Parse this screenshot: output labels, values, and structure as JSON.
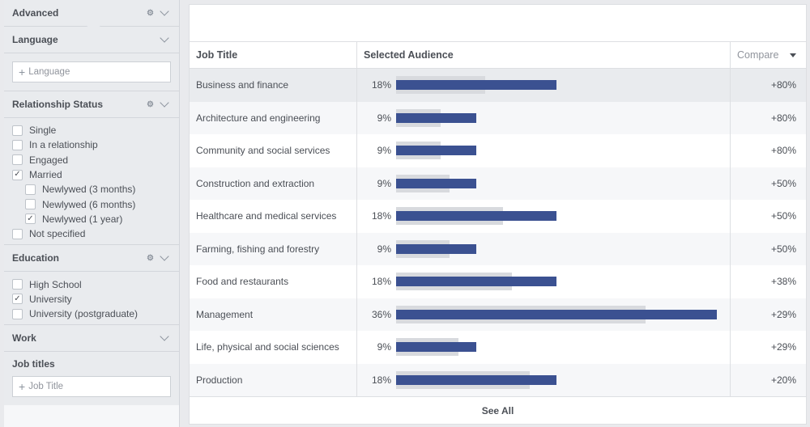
{
  "sidebar": {
    "advanced": {
      "title": "Advanced"
    },
    "language": {
      "title": "Language",
      "placeholder": "Language"
    },
    "relationship": {
      "title": "Relationship Status",
      "items": [
        {
          "label": "Single",
          "checked": false,
          "indent": false
        },
        {
          "label": "In a relationship",
          "checked": false,
          "indent": false
        },
        {
          "label": "Engaged",
          "checked": false,
          "indent": false
        },
        {
          "label": "Married",
          "checked": true,
          "indent": false
        },
        {
          "label": "Newlywed (3 months)",
          "checked": false,
          "indent": true
        },
        {
          "label": "Newlywed (6 months)",
          "checked": false,
          "indent": true
        },
        {
          "label": "Newlywed (1 year)",
          "checked": true,
          "indent": true
        },
        {
          "label": "Not specified",
          "checked": false,
          "indent": false
        }
      ]
    },
    "education": {
      "title": "Education",
      "items": [
        {
          "label": "High School",
          "checked": false
        },
        {
          "label": "University",
          "checked": true
        },
        {
          "label": "University (postgraduate)",
          "checked": false
        }
      ]
    },
    "work": {
      "title": "Work"
    },
    "job_titles": {
      "title": "Job titles",
      "placeholder": "Job Title"
    }
  },
  "table": {
    "headers": {
      "job_title": "Job Title",
      "audience": "Selected Audience",
      "compare": "Compare"
    },
    "rows": [
      {
        "title": "Business and finance",
        "pct": "18%",
        "value": 0.18,
        "benchmark": 0.1,
        "compare": "+80%"
      },
      {
        "title": "Architecture and engineering",
        "pct": "9%",
        "value": 0.09,
        "benchmark": 0.05,
        "compare": "+80%"
      },
      {
        "title": "Community and social services",
        "pct": "9%",
        "value": 0.09,
        "benchmark": 0.05,
        "compare": "+80%"
      },
      {
        "title": "Construction and extraction",
        "pct": "9%",
        "value": 0.09,
        "benchmark": 0.06,
        "compare": "+50%"
      },
      {
        "title": "Healthcare and medical services",
        "pct": "18%",
        "value": 0.18,
        "benchmark": 0.12,
        "compare": "+50%"
      },
      {
        "title": "Farming, fishing and forestry",
        "pct": "9%",
        "value": 0.09,
        "benchmark": 0.06,
        "compare": "+50%"
      },
      {
        "title": "Food and restaurants",
        "pct": "18%",
        "value": 0.18,
        "benchmark": 0.13,
        "compare": "+38%"
      },
      {
        "title": "Management",
        "pct": "36%",
        "value": 0.36,
        "benchmark": 0.28,
        "compare": "+29%"
      },
      {
        "title": "Life, physical and social sciences",
        "pct": "9%",
        "value": 0.09,
        "benchmark": 0.07,
        "compare": "+29%"
      },
      {
        "title": "Production",
        "pct": "18%",
        "value": 0.18,
        "benchmark": 0.15,
        "compare": "+20%"
      }
    ],
    "see_all": "See All"
  },
  "colors": {
    "bar": "#3b5191",
    "benchmark": "#d8dade"
  },
  "icons": {
    "settings": "gear-icon",
    "collapse": "chevron-down-icon",
    "add": "plus-icon",
    "sort": "caret-down-icon"
  }
}
